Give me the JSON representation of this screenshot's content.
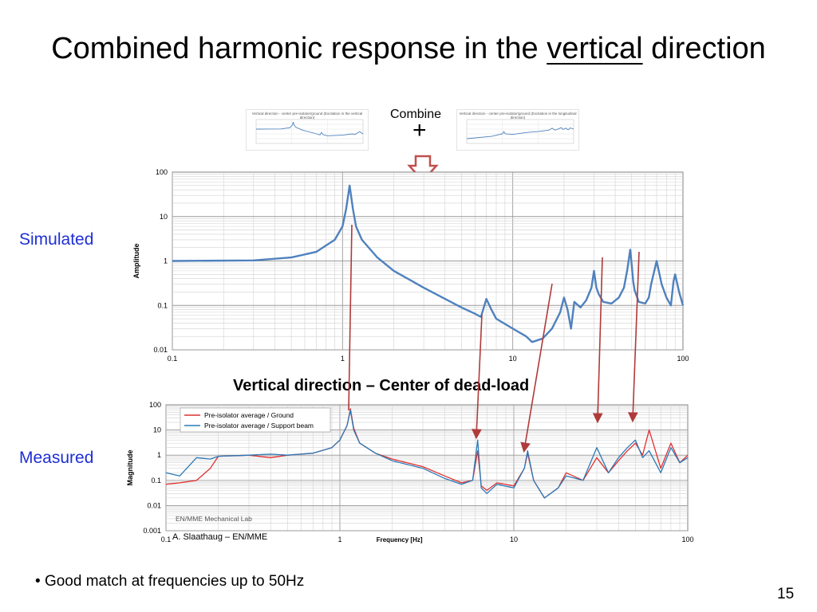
{
  "slide": {
    "title_before": "Combined harmonic response in the ",
    "title_underlined": "vertical",
    "title_after": " direction",
    "combine_label": "Combine",
    "plus_sign": "+",
    "left_label_simulated": "Simulated",
    "left_label_measured": "Measured",
    "measured_chart_title": "Vertical direction – Center of dead-load",
    "bullet": "Good match at frequencies up to 50Hz",
    "page_number": "15",
    "thumbnail_left_title": "Vertical direction - center pre-isolator/ground (Excitation in the vertical direction)",
    "thumbnail_right_title": "Vertical direction - center pre-isolator/ground (Excitation in the longitudinal direction)"
  },
  "colors": {
    "title_text": "#000000",
    "side_labels": "#1f2fd6",
    "simulated_line": "#4f81bd",
    "measured_ground": "#e03030",
    "measured_beam": "#2a7ab8",
    "connector_arrows": "#b03a3a"
  },
  "chart_data": [
    {
      "type": "line",
      "id": "simulated",
      "xscale": "log",
      "yscale": "log",
      "xlim": [
        0.1,
        100
      ],
      "ylim": [
        0.01,
        100
      ],
      "xticks": [
        "0.1",
        "1",
        "10",
        "100"
      ],
      "yticks": [
        "0.01",
        "0.1",
        "1",
        "10",
        "100"
      ],
      "xlabel": "",
      "ylabel": "Amplitude",
      "grid": true,
      "series": [
        {
          "x": [
            0.1,
            0.3,
            0.5,
            0.7,
            0.9,
            1.0,
            1.05,
            1.1,
            1.15,
            1.2,
            1.3,
            1.6,
            2.0,
            3.0,
            4.0,
            5.0,
            6.0,
            6.5,
            7.0,
            7.5,
            8.0,
            10.0,
            12.0,
            13.0,
            15.0,
            17.0,
            19.0,
            20.0,
            21.0,
            22.0,
            23.0,
            25.0,
            27.0,
            29.0,
            30.0,
            31.0,
            32.0,
            34.0,
            38.0,
            42.0,
            45.0,
            47.0,
            49.0,
            50.0,
            51.0,
            52.0,
            55.0,
            60.0,
            63.0,
            65.0,
            70.0,
            75.0,
            80.0,
            85.0,
            88.0,
            90.0,
            95.0,
            100.0
          ],
          "y": [
            1.0,
            1.03,
            1.2,
            1.6,
            3.0,
            6.0,
            15.0,
            50.0,
            15.0,
            6.0,
            3.0,
            1.2,
            0.6,
            0.25,
            0.14,
            0.09,
            0.065,
            0.055,
            0.14,
            0.08,
            0.05,
            0.03,
            0.02,
            0.015,
            0.018,
            0.03,
            0.07,
            0.15,
            0.08,
            0.03,
            0.12,
            0.09,
            0.13,
            0.25,
            0.6,
            0.25,
            0.18,
            0.12,
            0.11,
            0.15,
            0.25,
            0.6,
            1.8,
            0.8,
            0.35,
            0.22,
            0.12,
            0.11,
            0.15,
            0.3,
            1.0,
            0.3,
            0.15,
            0.1,
            0.35,
            0.5,
            0.2,
            0.1
          ]
        }
      ]
    },
    {
      "type": "line",
      "id": "measured",
      "title": "Vertical direction – Center of dead-load",
      "xscale": "log",
      "yscale": "log",
      "xlim": [
        0.1,
        100
      ],
      "ylim": [
        0.001,
        100
      ],
      "xticks": [
        "0.1",
        "1",
        "10",
        "100"
      ],
      "yticks": [
        "0.001",
        "0.01",
        "0.1",
        "1",
        "10",
        "100"
      ],
      "xlabel": "Frequency [Hz]",
      "ylabel": "Magnitude",
      "grid": true,
      "legend": "top-left",
      "annotations": [
        "EN/MME Mechanical Lab",
        "A. Slaathaug – EN/MME"
      ],
      "series": [
        {
          "name": "Pre-isolator average / Ground",
          "x": [
            0.1,
            0.12,
            0.15,
            0.18,
            0.2,
            0.3,
            0.4,
            0.5,
            0.7,
            0.9,
            1.0,
            1.1,
            1.15,
            1.2,
            1.3,
            1.6,
            2.0,
            3.0,
            4.0,
            5.0,
            5.8,
            6.2,
            6.5,
            7.0,
            8.0,
            10.0,
            11.5,
            12.0,
            13.0,
            15.0,
            18.0,
            20.0,
            25.0,
            30.0,
            35.0,
            40.0,
            45.0,
            50.0,
            55.0,
            60.0,
            70.0,
            80.0,
            90.0,
            100.0
          ],
          "y": [
            0.07,
            0.08,
            0.1,
            0.3,
            0.9,
            1.0,
            0.8,
            1.0,
            1.2,
            2.0,
            4.0,
            15.0,
            70.0,
            12.0,
            3.0,
            1.2,
            0.7,
            0.35,
            0.15,
            0.08,
            0.1,
            1.5,
            0.06,
            0.04,
            0.08,
            0.06,
            0.3,
            1.2,
            0.1,
            0.02,
            0.05,
            0.2,
            0.1,
            0.8,
            0.2,
            0.6,
            1.5,
            3.0,
            1.0,
            10.0,
            0.3,
            3.0,
            0.5,
            1.0
          ]
        },
        {
          "name": "Pre-isolator average / Support beam",
          "x": [
            0.1,
            0.12,
            0.15,
            0.18,
            0.2,
            0.3,
            0.4,
            0.5,
            0.7,
            0.9,
            1.0,
            1.1,
            1.15,
            1.2,
            1.3,
            1.6,
            2.0,
            3.0,
            4.0,
            5.0,
            5.8,
            6.2,
            6.5,
            7.0,
            8.0,
            10.0,
            11.5,
            12.0,
            13.0,
            15.0,
            18.0,
            20.0,
            25.0,
            30.0,
            35.0,
            40.0,
            45.0,
            50.0,
            55.0,
            60.0,
            70.0,
            80.0,
            90.0,
            100.0
          ],
          "y": [
            0.2,
            0.15,
            0.8,
            0.7,
            0.9,
            1.0,
            1.1,
            1.0,
            1.2,
            2.0,
            4.0,
            15.0,
            60.0,
            10.0,
            3.0,
            1.2,
            0.6,
            0.3,
            0.12,
            0.07,
            0.1,
            4.0,
            0.05,
            0.03,
            0.07,
            0.05,
            0.3,
            1.5,
            0.1,
            0.02,
            0.05,
            0.15,
            0.1,
            2.0,
            0.2,
            0.8,
            2.0,
            4.0,
            0.8,
            1.5,
            0.2,
            2.0,
            0.5,
            0.8
          ]
        }
      ]
    },
    {
      "type": "line",
      "id": "thumbnail-left",
      "title": "Vertical direction - center pre-isolator/ground (Excitation in the vertical direction)",
      "xscale": "log",
      "yscale": "log",
      "grid": true,
      "series": [
        {
          "x": [
            0.1,
            0.5,
            0.9,
            1.05,
            1.1,
            1.15,
            1.3,
            2.0,
            5.0,
            6.2,
            6.8,
            7.5,
            10.0,
            20.0,
            30.0,
            50.0,
            60.0,
            80.0,
            100.0
          ],
          "y": [
            1.0,
            1.1,
            2.0,
            8.0,
            30.0,
            8.0,
            2.5,
            0.6,
            0.1,
            0.06,
            0.2,
            0.07,
            0.04,
            0.05,
            0.06,
            0.1,
            0.08,
            0.3,
            0.1
          ]
        }
      ]
    },
    {
      "type": "line",
      "id": "thumbnail-right",
      "title": "Vertical direction - center pre-isolator/ground (Excitation in the longitudinal direction)",
      "xscale": "log",
      "yscale": "log",
      "grid": true,
      "series": [
        {
          "x": [
            0.1,
            0.5,
            1.0,
            1.1,
            1.2,
            2.0,
            5.0,
            10.0,
            20.0,
            25.0,
            30.0,
            35.0,
            45.0,
            50.0,
            60.0,
            70.0,
            80.0,
            100.0
          ],
          "y": [
            0.01,
            0.03,
            0.1,
            0.3,
            0.1,
            0.08,
            0.2,
            0.3,
            0.6,
            1.5,
            0.6,
            0.9,
            2.0,
            0.8,
            1.6,
            0.7,
            1.8,
            1.0
          ]
        }
      ]
    }
  ]
}
